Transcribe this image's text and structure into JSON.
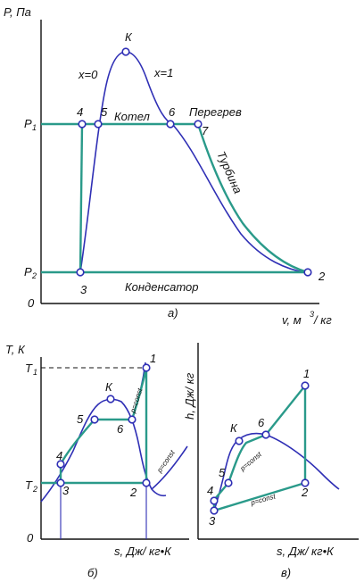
{
  "diagram_a": {
    "y_axis_label": "P, Па",
    "x_axis_label_prefix": "v, м",
    "x_axis_label_exp": "3",
    "x_axis_label_suffix": "/ кг",
    "origin": "0",
    "p1_label": "P",
    "p1_sub": "1",
    "p2_label": "P",
    "p2_sub": "2",
    "critical_point": "К",
    "x0": "x=0",
    "x1": "x=1",
    "point_2": "2",
    "point_3": "3",
    "point_4": "4",
    "point_5": "5",
    "point_6": "6",
    "point_7": "7",
    "boiler": "Котел",
    "superheat": "Перегрев",
    "turbine": "Турбина",
    "condenser": "Конденсатор",
    "caption": "а)"
  },
  "diagram_b": {
    "y_axis_label": "T, К",
    "t1_label": "T",
    "t1_sub": "1",
    "t2_label": "T",
    "t2_sub": "2",
    "origin": "0",
    "x_axis_label": "s, Дж/ кг•К",
    "critical_point": "К",
    "point_1": "1",
    "point_2": "2",
    "point_3": "3",
    "point_4": "4",
    "point_5": "5",
    "point_6": "6",
    "p_const_1": "p=const",
    "p_const_2": "p=const",
    "caption": "б)"
  },
  "diagram_c": {
    "y_axis_label": "h, Дж/ кг",
    "x_axis_label": "s, Дж/ кг•К",
    "critical_point": "К",
    "point_1": "1",
    "point_2": "2",
    "point_3": "3",
    "point_4": "4",
    "point_5": "5",
    "point_6": "6",
    "p_const_1": "p=const",
    "p_const_2": "p=const",
    "caption": "в)"
  }
}
